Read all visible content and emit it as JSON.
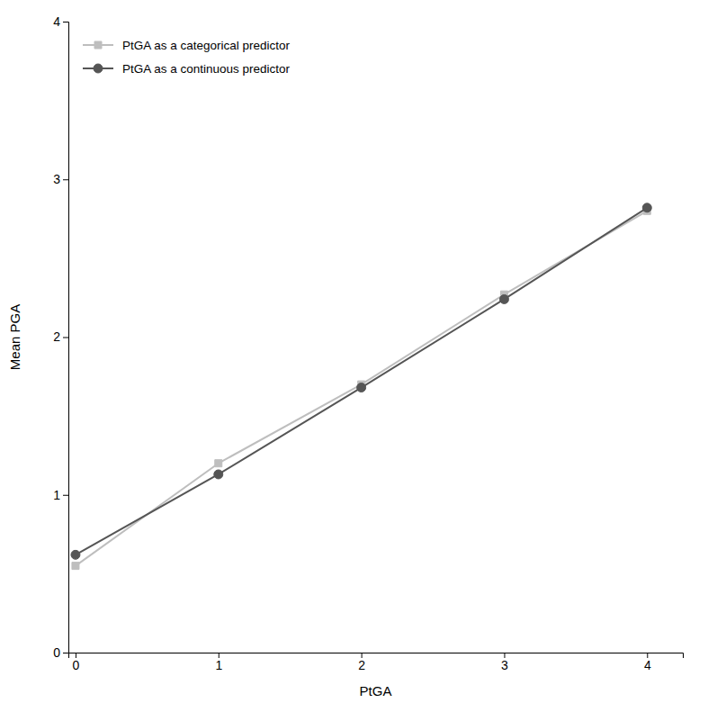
{
  "chart_data": {
    "type": "line",
    "xlabel": "PtGA",
    "ylabel": "Mean PGA",
    "x": [
      0,
      1,
      2,
      3,
      4
    ],
    "series": [
      {
        "name": "PtGA as a categorical predictor",
        "color": "#bebebe",
        "marker": "square",
        "values": [
          0.55,
          1.2,
          1.7,
          2.27,
          2.8
        ]
      },
      {
        "name": "PtGA as a continuous predictor",
        "color": "#555555",
        "marker": "circle",
        "values": [
          0.62,
          1.13,
          1.68,
          2.24,
          2.82
        ]
      }
    ],
    "xlim": [
      -0.05,
      4.25
    ],
    "ylim": [
      0,
      4.0
    ],
    "xticks": [
      0,
      1,
      2,
      3,
      4
    ],
    "yticks": [
      0,
      1,
      2,
      3,
      4
    ],
    "grid": false,
    "legend": "upper left"
  }
}
